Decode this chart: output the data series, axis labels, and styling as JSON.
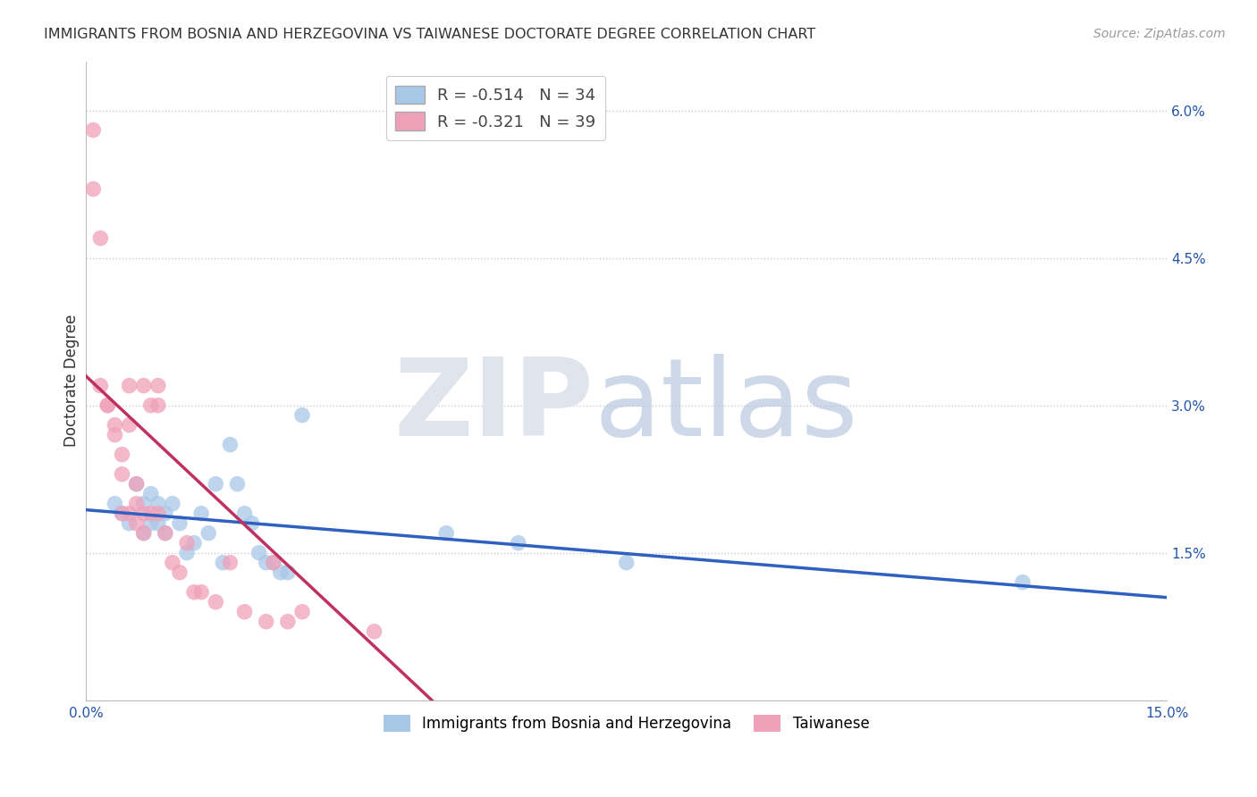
{
  "title": "IMMIGRANTS FROM BOSNIA AND HERZEGOVINA VS TAIWANESE DOCTORATE DEGREE CORRELATION CHART",
  "source_text": "Source: ZipAtlas.com",
  "ylabel": "Doctorate Degree",
  "xlim": [
    0.0,
    0.15
  ],
  "ylim": [
    0.0,
    0.065
  ],
  "xtick_positions": [
    0.0,
    0.015,
    0.03,
    0.045,
    0.06,
    0.075,
    0.09,
    0.105,
    0.12,
    0.135,
    0.15
  ],
  "xtick_labels_sparse": {
    "0.0": "0.0%",
    "0.15": "15.0%"
  },
  "ytick_positions": [
    0.0,
    0.015,
    0.03,
    0.045,
    0.06
  ],
  "ytick_labels": [
    "",
    "1.5%",
    "3.0%",
    "4.5%",
    "6.0%"
  ],
  "blue_R": -0.514,
  "blue_N": 34,
  "pink_R": -0.321,
  "pink_N": 39,
  "blue_color": "#a8c8e8",
  "pink_color": "#f0a0b8",
  "blue_line_color": "#3060c0",
  "pink_line_color": "#c03060",
  "grid_color": "#c8c8d8",
  "background_color": "#ffffff",
  "legend_label_blue": "Immigrants from Bosnia and Herzegovina",
  "legend_label_pink": "Taiwanese",
  "blue_x": [
    0.004,
    0.005,
    0.006,
    0.007,
    0.008,
    0.008,
    0.009,
    0.009,
    0.01,
    0.01,
    0.011,
    0.011,
    0.012,
    0.013,
    0.014,
    0.015,
    0.016,
    0.017,
    0.018,
    0.019,
    0.02,
    0.021,
    0.022,
    0.023,
    0.024,
    0.025,
    0.026,
    0.027,
    0.028,
    0.03,
    0.05,
    0.06,
    0.075,
    0.13
  ],
  "blue_y": [
    0.02,
    0.019,
    0.018,
    0.022,
    0.02,
    0.017,
    0.021,
    0.018,
    0.02,
    0.018,
    0.019,
    0.017,
    0.02,
    0.018,
    0.015,
    0.016,
    0.019,
    0.017,
    0.022,
    0.014,
    0.026,
    0.022,
    0.019,
    0.018,
    0.015,
    0.014,
    0.014,
    0.013,
    0.013,
    0.029,
    0.017,
    0.016,
    0.014,
    0.012
  ],
  "pink_x": [
    0.001,
    0.001,
    0.002,
    0.002,
    0.003,
    0.003,
    0.004,
    0.004,
    0.005,
    0.005,
    0.005,
    0.006,
    0.006,
    0.006,
    0.007,
    0.007,
    0.007,
    0.008,
    0.008,
    0.008,
    0.009,
    0.009,
    0.01,
    0.01,
    0.01,
    0.011,
    0.012,
    0.013,
    0.014,
    0.015,
    0.016,
    0.018,
    0.02,
    0.022,
    0.025,
    0.026,
    0.028,
    0.03,
    0.04
  ],
  "pink_y": [
    0.058,
    0.052,
    0.047,
    0.032,
    0.03,
    0.03,
    0.028,
    0.027,
    0.025,
    0.023,
    0.019,
    0.032,
    0.028,
    0.019,
    0.022,
    0.02,
    0.018,
    0.032,
    0.019,
    0.017,
    0.03,
    0.019,
    0.032,
    0.03,
    0.019,
    0.017,
    0.014,
    0.013,
    0.016,
    0.011,
    0.011,
    0.01,
    0.014,
    0.009,
    0.008,
    0.014,
    0.008,
    0.009,
    0.007
  ],
  "pink_line_x_end": 0.048,
  "blue_line_intercept": 0.021,
  "blue_line_slope": -0.145,
  "title_fontsize": 11.5,
  "tick_fontsize": 11,
  "ylabel_fontsize": 12
}
